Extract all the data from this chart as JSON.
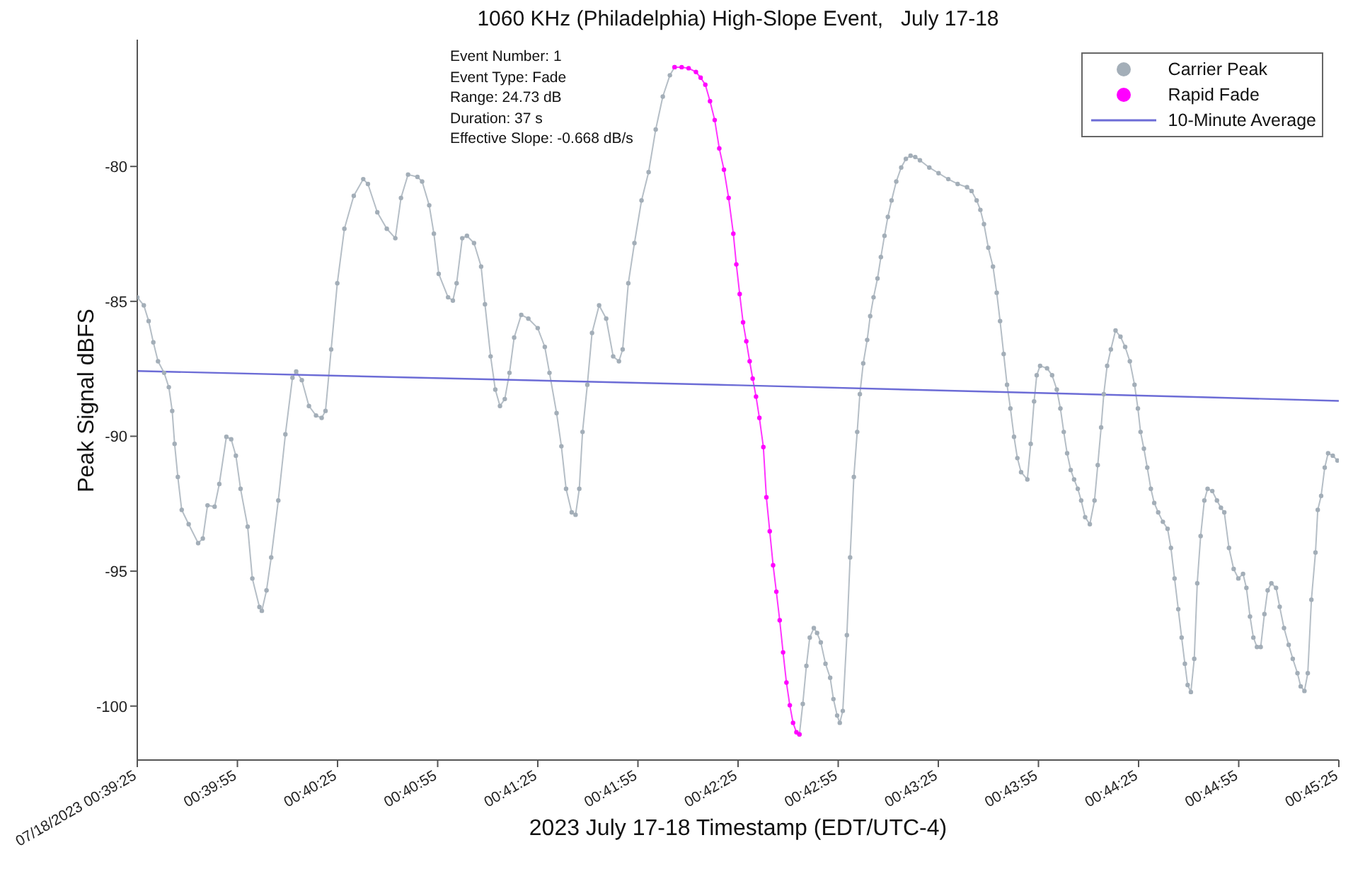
{
  "chart_data": {
    "type": "line",
    "title": "1060 KHz (Philadelphia) High-Slope Event,   July 17-18",
    "xlabel": "2023 July 17-18 Timestamp (EDT/UTC-4)",
    "ylabel": "Peak Signal dBFS",
    "annotations": [
      "Event Number: 1",
      "Event Type: Fade",
      "Range: 24.73 dB",
      "Duration: 37 s",
      "Effective Slope: -0.668 dB/s"
    ],
    "xlim": [
      0.656944,
      0.756944
    ],
    "xticks": [
      {
        "value": 0.656944,
        "label": "07/18/2023 00:39:25"
      },
      {
        "value": 0.665278,
        "label": "00:39:55"
      },
      {
        "value": 0.673611,
        "label": "00:40:25"
      },
      {
        "value": 0.681944,
        "label": "00:40:55"
      },
      {
        "value": 0.690278,
        "label": "00:41:25"
      },
      {
        "value": 0.698611,
        "label": "00:41:55"
      },
      {
        "value": 0.706944,
        "label": "00:42:25"
      },
      {
        "value": 0.715278,
        "label": "00:42:55"
      },
      {
        "value": 0.723611,
        "label": "00:43:25"
      },
      {
        "value": 0.731944,
        "label": "00:43:55"
      },
      {
        "value": 0.740278,
        "label": "00:44:25"
      },
      {
        "value": 0.748611,
        "label": "00:44:55"
      },
      {
        "value": 0.756944,
        "label": "00:45:25"
      }
    ],
    "ylim": [
      -102,
      -75.3
    ],
    "yticks": [
      -100,
      -95,
      -90,
      -85,
      -80
    ],
    "legend": "top right",
    "series": [
      {
        "name": "Carrier Peak",
        "color": "#a3aeb8",
        "marker": "circle",
        "x": [
          0.656944,
          0.65749,
          0.65789,
          0.65828,
          0.65867,
          0.65918,
          0.65957,
          0.65985,
          0.66005,
          0.66032,
          0.66064,
          0.66122,
          0.66201,
          0.6624,
          0.66279,
          0.66338,
          0.66377,
          0.66436,
          0.66476,
          0.66515,
          0.66554,
          0.66613,
          0.66652,
          0.66711,
          0.66731,
          0.6677,
          0.66809,
          0.66868,
          0.66927,
          0.66986,
          0.67017,
          0.67064,
          0.67123,
          0.67182,
          0.67229,
          0.67261,
          0.67308,
          0.67359,
          0.67418,
          0.67496,
          0.67575,
          0.67614,
          0.67692,
          0.67771,
          0.67842,
          0.67889,
          0.67948,
          0.68026,
          0.68065,
          0.68124,
          0.68163,
          0.68203,
          0.68281,
          0.68321,
          0.68352,
          0.68399,
          0.68438,
          0.68497,
          0.68556,
          0.68588,
          0.68635,
          0.68674,
          0.68713,
          0.68753,
          0.68792,
          0.68831,
          0.6889,
          0.68949,
          0.69027,
          0.69086,
          0.69125,
          0.69184,
          0.69224,
          0.69263,
          0.6931,
          0.69342,
          0.69373,
          0.694,
          0.6944,
          0.69479,
          0.69538,
          0.69597,
          0.69655,
          0.69703,
          0.69734,
          0.69781,
          0.69832,
          0.69891,
          0.6995,
          0.70009,
          0.70068,
          0.70127,
          0.70166,
          0.704,
          0.71205,
          0.71233,
          0.71263,
          0.71291,
          0.71325,
          0.71352,
          0.71383,
          0.71422,
          0.71461,
          0.71488,
          0.71519,
          0.71541,
          0.71566,
          0.716,
          0.71627,
          0.71658,
          0.71686,
          0.71708,
          0.71736,
          0.71769,
          0.71794,
          0.71822,
          0.71855,
          0.71883,
          0.71913,
          0.71941,
          0.71972,
          0.72011,
          0.72052,
          0.72091,
          0.7213,
          0.72169,
          0.72208,
          0.72286,
          0.72363,
          0.72444,
          0.72522,
          0.726,
          0.72638,
          0.7268,
          0.72711,
          0.72741,
          0.72777,
          0.72816,
          0.72847,
          0.72875,
          0.72905,
          0.72933,
          0.72961,
          0.72991,
          0.73019,
          0.7305,
          0.73102,
          0.7313,
          0.73158,
          0.7318,
          0.73208,
          0.73266,
          0.73308,
          0.73347,
          0.73377,
          0.73405,
          0.73433,
          0.73463,
          0.73491,
          0.73522,
          0.7355,
          0.73583,
          0.73622,
          0.73661,
          0.73688,
          0.73716,
          0.73738,
          0.73766,
          0.73797,
          0.73836,
          0.73877,
          0.73916,
          0.73955,
          0.73994,
          0.74022,
          0.74044,
          0.74072,
          0.741,
          0.7413,
          0.74158,
          0.74191,
          0.7423,
          0.74269,
          0.74297,
          0.74327,
          0.74358,
          0.74386,
          0.74413,
          0.74436,
          0.74463,
          0.74491,
          0.74516,
          0.74544,
          0.74575,
          0.74602,
          0.74641,
          0.7468,
          0.74713,
          0.74741,
          0.7478,
          0.74819,
          0.74858,
          0.74897,
          0.74925,
          0.74955,
          0.74983,
          0.75013,
          0.75044,
          0.75075,
          0.75102,
          0.75133,
          0.75172,
          0.75202,
          0.75238,
          0.75277,
          0.75311,
          0.7535,
          0.75377,
          0.75408,
          0.75436,
          0.75466,
          0.755,
          0.75519,
          0.75547,
          0.75577,
          0.75605,
          0.75644,
          0.75683
        ],
        "values": [
          -84.85,
          -85.15,
          -85.73,
          -86.52,
          -87.22,
          -87.65,
          -88.18,
          -89.06,
          -90.28,
          -91.51,
          -92.73,
          -93.26,
          -93.96,
          -93.79,
          -92.56,
          -92.61,
          -91.77,
          -90.02,
          -90.11,
          -90.72,
          -91.95,
          -93.35,
          -95.27,
          -96.33,
          -96.47,
          -95.71,
          -94.49,
          -92.38,
          -89.93,
          -87.83,
          -87.6,
          -87.92,
          -88.88,
          -89.23,
          -89.32,
          -89.06,
          -86.78,
          -84.33,
          -82.31,
          -81.09,
          -80.47,
          -80.65,
          -81.7,
          -82.31,
          -82.66,
          -81.17,
          -80.3,
          -80.39,
          -80.56,
          -81.44,
          -82.49,
          -83.98,
          -84.85,
          -84.97,
          -84.33,
          -82.66,
          -82.57,
          -82.84,
          -83.71,
          -85.11,
          -87.04,
          -88.27,
          -88.88,
          -88.62,
          -87.65,
          -86.34,
          -85.5,
          -85.64,
          -85.99,
          -86.69,
          -87.65,
          -89.14,
          -90.37,
          -91.95,
          -92.82,
          -92.91,
          -91.95,
          -89.84,
          -88.09,
          -86.17,
          -85.15,
          -85.64,
          -87.04,
          -87.22,
          -86.78,
          -84.33,
          -82.84,
          -81.26,
          -80.21,
          -78.63,
          -77.41,
          -76.62,
          -76.32,
          null,
          -101.05,
          -99.92,
          -98.51,
          -97.46,
          -97.11,
          -97.29,
          -97.64,
          -98.43,
          -98.95,
          -99.74,
          -100.35,
          -100.62,
          -100.18,
          -97.37,
          -94.49,
          -91.51,
          -89.84,
          -88.44,
          -87.3,
          -86.43,
          -85.55,
          -84.85,
          -84.15,
          -83.36,
          -82.57,
          -81.87,
          -81.26,
          -80.56,
          -80.04,
          -79.72,
          -79.6,
          -79.65,
          -79.77,
          -80.04,
          -80.25,
          -80.47,
          -80.65,
          -80.77,
          -80.91,
          -81.26,
          -81.61,
          -82.14,
          -83.01,
          -83.71,
          -84.68,
          -85.73,
          -86.95,
          -88.09,
          -88.97,
          -90.02,
          -90.81,
          -91.33,
          -91.6,
          -90.28,
          -88.71,
          -87.74,
          -87.39,
          -87.48,
          -87.74,
          -88.27,
          -88.97,
          -89.84,
          -90.63,
          -91.25,
          -91.6,
          -91.95,
          -92.38,
          -93.0,
          -93.26,
          -92.38,
          -91.07,
          -89.67,
          -88.44,
          -87.39,
          -86.78,
          -86.08,
          -86.31,
          -86.69,
          -87.22,
          -88.09,
          -88.97,
          -89.84,
          -90.46,
          -91.16,
          -91.95,
          -92.47,
          -92.82,
          -93.17,
          -93.43,
          -94.14,
          -95.27,
          -96.41,
          -97.46,
          -98.43,
          -99.22,
          -99.48,
          -98.25,
          -95.45,
          -93.7,
          -92.38,
          -91.95,
          -92.03,
          -92.38,
          -92.65,
          -92.82,
          -94.14,
          -94.92,
          -95.27,
          -95.1,
          -95.62,
          -96.68,
          -97.46,
          -97.81,
          -97.81,
          -96.59,
          -95.71,
          -95.45,
          -95.62,
          -96.32,
          -97.11,
          -97.73,
          -98.25,
          -98.78,
          -99.27,
          -99.44,
          -98.78,
          -96.06,
          -94.31,
          -92.73,
          -92.21,
          -91.16,
          -90.63,
          -90.72,
          -90.9
        ]
      },
      {
        "name": "Rapid Fade",
        "color": "#ff00ff",
        "marker": "circle",
        "x": [
          0.70166,
          0.70225,
          0.70283,
          0.70344,
          0.70383,
          0.70422,
          0.70461,
          0.705,
          0.70538,
          0.70577,
          0.70616,
          0.70655,
          0.7068,
          0.70708,
          0.70736,
          0.70763,
          0.70791,
          0.70816,
          0.70844,
          0.70872,
          0.70905,
          0.7093,
          0.70958,
          0.70986,
          0.71013,
          0.71041,
          0.71069,
          0.71097,
          0.71125,
          0.71152,
          0.7118,
          0.71205
        ],
        "values": [
          -76.32,
          -76.32,
          -76.36,
          -76.5,
          -76.71,
          -76.97,
          -77.58,
          -78.28,
          -79.33,
          -80.12,
          -81.17,
          -82.49,
          -83.63,
          -84.73,
          -85.78,
          -86.48,
          -87.22,
          -87.86,
          -88.53,
          -89.32,
          -90.4,
          -92.26,
          -93.52,
          -94.78,
          -95.76,
          -96.82,
          -98.01,
          -99.13,
          -99.97,
          -100.62,
          -100.97,
          -101.05
        ]
      },
      {
        "name": "10-Minute Average",
        "color": "#6c6cd6",
        "marker": "none",
        "x": [
          0.656944,
          0.70694,
          0.74556,
          0.75694
        ],
        "values": [
          -87.58,
          -88.11,
          -88.55,
          -88.69
        ]
      }
    ]
  }
}
